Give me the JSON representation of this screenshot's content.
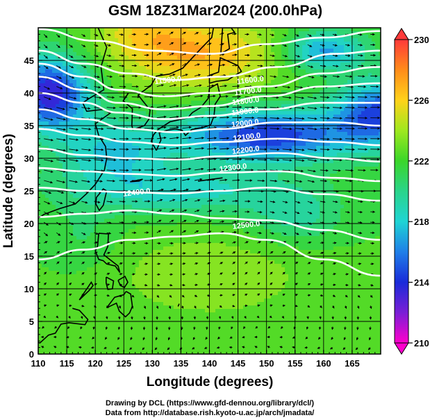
{
  "chart_data": {
    "type": "heatmap",
    "title": "GSM 18Z31Mar2024 (200.0hPa)",
    "xlabel": "Longitude (degrees)",
    "ylabel": "Latitude  (degrees)",
    "xlim": [
      110,
      170
    ],
    "ylim": [
      0,
      50
    ],
    "x_ticks": [
      110,
      115,
      120,
      125,
      130,
      135,
      140,
      145,
      150,
      155,
      160,
      165
    ],
    "y_ticks": [
      0,
      5,
      10,
      15,
      20,
      25,
      30,
      35,
      40,
      45
    ],
    "grid": true,
    "colorbar": {
      "range": [
        210,
        230
      ],
      "tick_labels": [
        "230",
        "226",
        "222",
        "218",
        "214",
        "210"
      ],
      "tick_values": [
        230,
        226,
        222,
        218,
        214,
        210
      ],
      "colors": [
        "#ff00cc",
        "#7a1fd6",
        "#1a2bd9",
        "#1f7fe8",
        "#1fd4d4",
        "#2ad48a",
        "#3ad62a",
        "#9fe81f",
        "#ffd21a",
        "#ff8c1a",
        "#ff3a3a"
      ],
      "levels": 20
    },
    "contours": {
      "variable": "geopotential height",
      "color": "#ffffff",
      "labels": [
        {
          "text": "11500.0",
          "lon": 132.8,
          "lat": 41.6
        },
        {
          "text": "11600.0",
          "lon": 147.2,
          "lat": 41.6
        },
        {
          "text": "11700.0",
          "lon": 146.8,
          "lat": 39.9
        },
        {
          "text": "11800.0",
          "lon": 146.4,
          "lat": 38.4
        },
        {
          "text": "11900.0",
          "lon": 146.3,
          "lat": 36.8
        },
        {
          "text": "12000.0",
          "lon": 146.3,
          "lat": 35.0
        },
        {
          "text": "12100.0",
          "lon": 146.6,
          "lat": 32.9
        },
        {
          "text": "12200.0",
          "lon": 146.4,
          "lat": 30.9
        },
        {
          "text": "12300.0",
          "lon": 144.2,
          "lat": 28.2
        },
        {
          "text": "12400.0",
          "lon": 127.3,
          "lat": 24.4
        },
        {
          "text": "12500.0",
          "lon": 146.5,
          "lat": 19.4
        }
      ]
    },
    "wind_vectors": true
  },
  "credits": {
    "line1": "Drawing by DCL (https://www.gfd-dennou.org/library/dcl/)",
    "line2": "Data from http://database.rish.kyoto-u.ac.jp/arch/jmadata/"
  }
}
